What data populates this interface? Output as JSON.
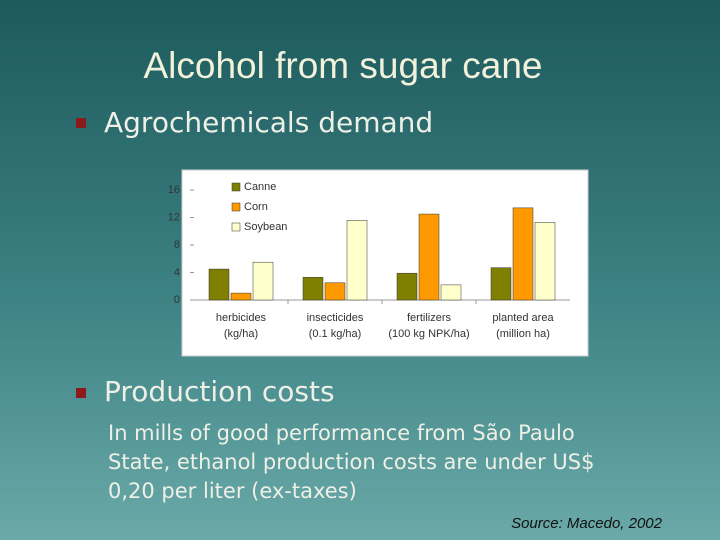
{
  "slide": {
    "title": "Alcohol from sugar cane",
    "bullets": [
      "Agrochemicals demand",
      "Production costs"
    ],
    "paragraph": [
      "In mills of good performance from São Paulo",
      "State, ethanol production costs are under US$",
      "0,20 per liter (ex-taxes)"
    ],
    "source": "Source: Macedo, 2002"
  },
  "chart_data": {
    "type": "bar",
    "categories": [
      [
        "herbicides",
        "(kg/ha)"
      ],
      [
        "insecticides",
        "(0.1 kg/ha)"
      ],
      [
        "fertilizers",
        "(100 kg NPK/ha)"
      ],
      [
        "planted area",
        "(million ha)"
      ]
    ],
    "series": [
      {
        "name": "Canne",
        "color": "#808000",
        "values": [
          4.5,
          3.3,
          3.9,
          4.7
        ]
      },
      {
        "name": "Corn",
        "color": "#ff9900",
        "values": [
          1.0,
          2.5,
          12.5,
          13.4
        ]
      },
      {
        "name": "Soybean",
        "color": "#ffffcc",
        "values": [
          5.5,
          11.6,
          2.2,
          11.3
        ]
      }
    ],
    "ylim": [
      0,
      16
    ],
    "yticks": [
      0,
      4,
      8,
      12,
      16
    ],
    "legend": "top-left"
  }
}
